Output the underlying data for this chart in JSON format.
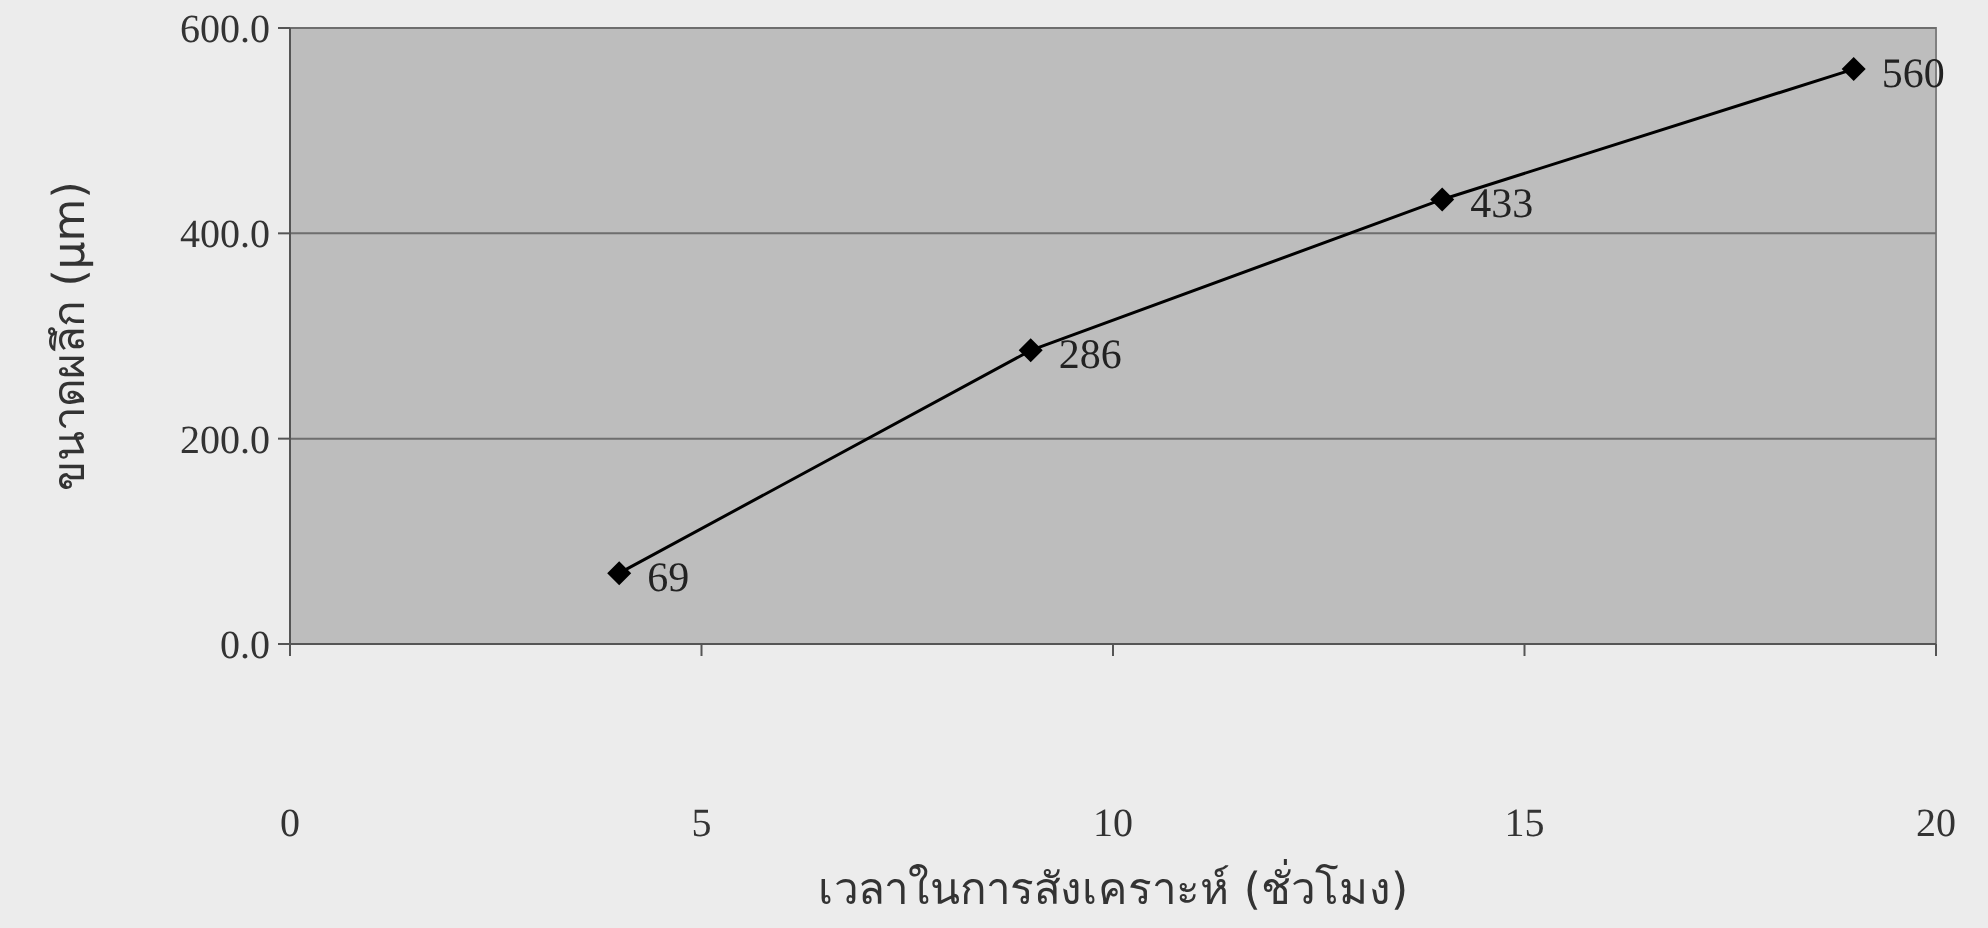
{
  "chart_data": {
    "type": "line",
    "xlabel": "เวลาในการสังเคราะห์ (ชั่วโมง)",
    "ylabel": "ขนาดผลึก (μm)",
    "x": [
      4,
      9,
      14,
      19
    ],
    "series": [
      {
        "color": "#000000",
        "values": [
          69,
          286,
          433,
          560
        ]
      }
    ],
    "xlim": [
      0,
      20
    ],
    "xticks": [
      0,
      5,
      10,
      15,
      20
    ],
    "ylim": [
      0,
      600
    ],
    "yticks": [
      {
        "value": 0,
        "label": "0.0"
      },
      {
        "value": 200,
        "label": "200.0"
      },
      {
        "value": 400,
        "label": "400.0"
      },
      {
        "value": 600,
        "label": "600.0"
      }
    ],
    "grid": "y",
    "marker": "diamond",
    "line_style": "solid",
    "data_labels": true
  }
}
